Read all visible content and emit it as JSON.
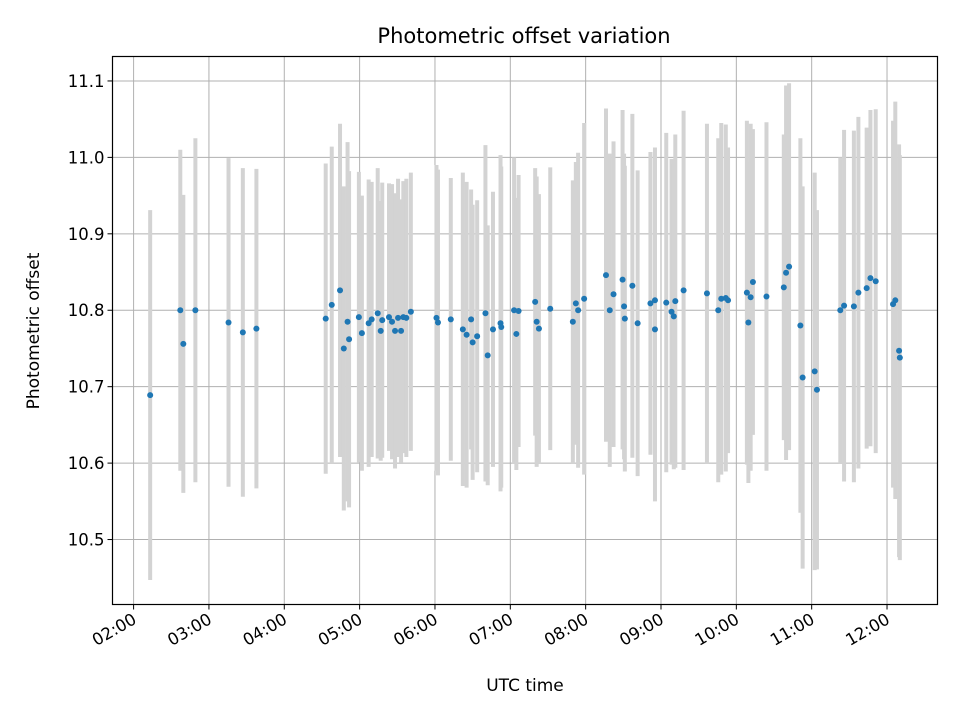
{
  "chart_data": {
    "type": "scatter",
    "title": "Photometric offset variation",
    "xlabel": "UTC time",
    "ylabel": "Photometric offset",
    "x_unit": "hour (UTC, decimal)",
    "xlim": [
      1.72,
      12.67
    ],
    "ylim": [
      10.415,
      11.132
    ],
    "xticks": [
      {
        "value": 2,
        "label": "02:00"
      },
      {
        "value": 3,
        "label": "03:00"
      },
      {
        "value": 4,
        "label": "04:00"
      },
      {
        "value": 5,
        "label": "05:00"
      },
      {
        "value": 6,
        "label": "06:00"
      },
      {
        "value": 7,
        "label": "07:00"
      },
      {
        "value": 8,
        "label": "08:00"
      },
      {
        "value": 9,
        "label": "09:00"
      },
      {
        "value": 10,
        "label": "10:00"
      },
      {
        "value": 11,
        "label": "11:00"
      },
      {
        "value": 12,
        "label": "12:00"
      }
    ],
    "yticks": [
      {
        "value": 10.5,
        "label": "10.5"
      },
      {
        "value": 10.6,
        "label": "10.6"
      },
      {
        "value": 10.7,
        "label": "10.7"
      },
      {
        "value": 10.8,
        "label": "10.8"
      },
      {
        "value": 10.9,
        "label": "10.9"
      },
      {
        "value": 11.0,
        "label": "11.0"
      },
      {
        "value": 11.1,
        "label": "11.1"
      }
    ],
    "grid": true,
    "colors": {
      "points": "#1f77b4",
      "errorbars": "#d3d3d3",
      "grid": "#b0b0b0"
    },
    "points": [
      [
        2.22,
        10.689,
        0.242
      ],
      [
        2.62,
        10.8,
        0.21
      ],
      [
        2.66,
        10.756,
        0.195
      ],
      [
        2.82,
        10.8,
        0.225
      ],
      [
        3.26,
        10.784,
        0.215
      ],
      [
        3.45,
        10.771,
        0.215
      ],
      [
        3.63,
        10.776,
        0.209
      ],
      [
        4.55,
        10.789,
        0.203
      ],
      [
        4.63,
        10.807,
        0.207
      ],
      [
        4.74,
        10.826,
        0.218
      ],
      [
        4.79,
        10.75,
        0.212
      ],
      [
        4.84,
        10.785,
        0.235
      ],
      [
        4.86,
        10.762,
        0.22
      ],
      [
        4.99,
        10.791,
        0.19
      ],
      [
        5.03,
        10.77,
        0.18
      ],
      [
        5.12,
        10.783,
        0.188
      ],
      [
        5.16,
        10.788,
        0.18
      ],
      [
        5.24,
        10.796,
        0.19
      ],
      [
        5.3,
        10.787,
        0.18
      ],
      [
        5.28,
        10.773,
        0.17
      ],
      [
        5.39,
        10.791,
        0.175
      ],
      [
        5.43,
        10.785,
        0.18
      ],
      [
        5.47,
        10.773,
        0.18
      ],
      [
        5.51,
        10.79,
        0.182
      ],
      [
        5.55,
        10.773,
        0.172
      ],
      [
        5.58,
        10.791,
        0.178
      ],
      [
        5.62,
        10.79,
        0.182
      ],
      [
        5.68,
        10.798,
        0.182
      ],
      [
        6.02,
        10.79,
        0.2
      ],
      [
        6.04,
        10.784,
        0.2
      ],
      [
        6.21,
        10.788,
        0.185
      ],
      [
        6.37,
        10.775,
        0.205
      ],
      [
        6.42,
        10.768,
        0.2
      ],
      [
        6.48,
        10.788,
        0.17
      ],
      [
        6.5,
        10.758,
        0.18
      ],
      [
        6.56,
        10.766,
        0.178
      ],
      [
        6.67,
        10.796,
        0.22
      ],
      [
        6.7,
        10.741,
        0.17
      ],
      [
        6.77,
        10.775,
        0.18
      ],
      [
        6.87,
        10.783,
        0.22
      ],
      [
        6.88,
        10.778,
        0.21
      ],
      [
        7.05,
        10.8,
        0.2
      ],
      [
        7.08,
        10.769,
        0.178
      ],
      [
        7.11,
        10.799,
        0.178
      ],
      [
        7.33,
        10.811,
        0.175
      ],
      [
        7.35,
        10.785,
        0.19
      ],
      [
        7.38,
        10.776,
        0.176
      ],
      [
        7.53,
        10.802,
        0.185
      ],
      [
        7.83,
        10.785,
        0.185
      ],
      [
        7.87,
        10.809,
        0.185
      ],
      [
        7.9,
        10.8,
        0.206
      ],
      [
        7.98,
        10.815,
        0.23
      ],
      [
        8.27,
        10.846,
        0.218
      ],
      [
        8.32,
        10.8,
        0.205
      ],
      [
        8.37,
        10.821,
        0.2
      ],
      [
        8.49,
        10.84,
        0.222
      ],
      [
        8.51,
        10.805,
        0.2
      ],
      [
        8.52,
        10.789,
        0.2
      ],
      [
        8.62,
        10.832,
        0.225
      ],
      [
        8.69,
        10.783,
        0.2
      ],
      [
        8.86,
        10.809,
        0.198
      ],
      [
        8.92,
        10.775,
        0.225
      ],
      [
        8.92,
        10.813,
        0.2
      ],
      [
        9.07,
        10.81,
        0.222
      ],
      [
        9.14,
        10.798,
        0.2
      ],
      [
        9.17,
        10.792,
        0.2
      ],
      [
        9.19,
        10.812,
        0.218
      ],
      [
        9.3,
        10.826,
        0.235
      ],
      [
        9.61,
        10.822,
        0.222
      ],
      [
        9.76,
        10.8,
        0.225
      ],
      [
        9.8,
        10.815,
        0.23
      ],
      [
        9.86,
        10.816,
        0.227
      ],
      [
        9.89,
        10.813,
        0.2
      ],
      [
        10.14,
        10.823,
        0.225
      ],
      [
        10.16,
        10.784,
        0.21
      ],
      [
        10.19,
        10.817,
        0.227
      ],
      [
        10.22,
        10.837,
        0.2
      ],
      [
        10.4,
        10.818,
        0.228
      ],
      [
        10.63,
        10.83,
        0.2
      ],
      [
        10.66,
        10.849,
        0.245
      ],
      [
        10.7,
        10.857,
        0.24
      ],
      [
        10.85,
        10.78,
        0.245
      ],
      [
        10.88,
        10.712,
        0.25
      ],
      [
        11.04,
        10.72,
        0.26
      ],
      [
        11.07,
        10.696,
        0.235
      ],
      [
        11.38,
        10.8,
        0.2
      ],
      [
        11.43,
        10.806,
        0.23
      ],
      [
        11.56,
        10.805,
        0.23
      ],
      [
        11.62,
        10.823,
        0.23
      ],
      [
        11.73,
        10.829,
        0.21
      ],
      [
        11.78,
        10.842,
        0.22
      ],
      [
        11.85,
        10.838,
        0.225
      ],
      [
        12.08,
        10.808,
        0.24
      ],
      [
        12.11,
        10.813,
        0.26
      ],
      [
        12.16,
        10.747,
        0.27
      ],
      [
        12.17,
        10.738,
        0.265
      ]
    ]
  }
}
